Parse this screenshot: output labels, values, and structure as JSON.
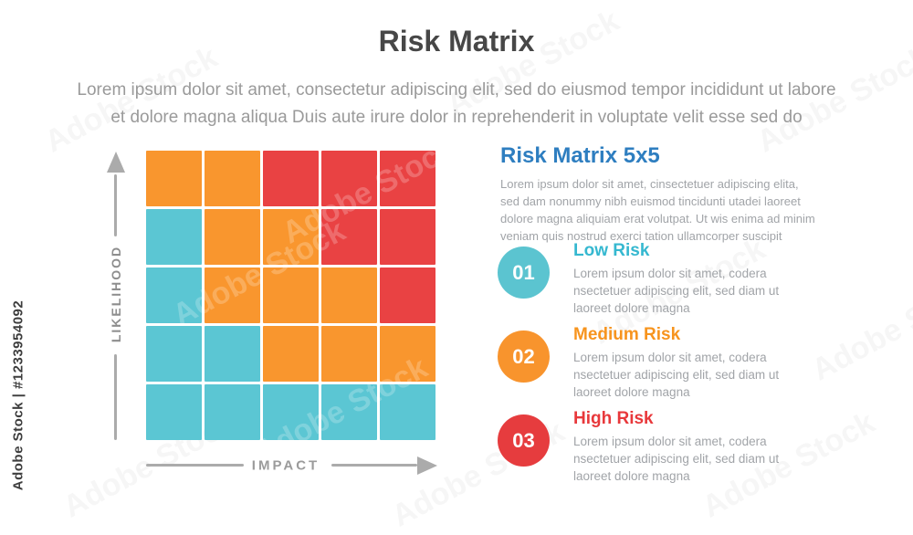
{
  "watermark": {
    "side_label": "Adobe Stock | #1233954092",
    "diagonal_label": "Adobe Stock"
  },
  "header": {
    "title": "Risk Matrix",
    "subtitle_line1": "Lorem ipsum dolor sit amet, consectetur adipiscing elit, sed do eiusmod tempor incididunt ut labore",
    "subtitle_line2": "et dolore magna aliqua Duis aute irure dolor in reprehenderit in voluptate velit esse sed do"
  },
  "matrix": {
    "y_axis_label": "LIKELIHOOD",
    "x_axis_label": "IMPACT",
    "rows": 5,
    "cols": 5,
    "cells": [
      [
        "orange",
        "orange",
        "red",
        "red",
        "red"
      ],
      [
        "teal",
        "orange",
        "orange",
        "red",
        "red"
      ],
      [
        "teal",
        "orange",
        "orange",
        "orange",
        "red"
      ],
      [
        "teal",
        "teal",
        "orange",
        "orange",
        "orange"
      ],
      [
        "teal",
        "teal",
        "teal",
        "teal",
        "teal"
      ]
    ],
    "colors": {
      "teal": "#5BC6D3",
      "orange": "#F9962E",
      "red": "#E94243"
    }
  },
  "panel": {
    "heading": "Risk Matrix 5x5",
    "heading_color": "#2E7EC0",
    "description": "Lorem ipsum dolor sit amet, cinsectetuer adipiscing elita, sed dam nonummy nibh euismod tincidunti utadei laoreet dolore magna aliquiam erat volutpat. Ut wis enima ad minim veniam quis nostrud exerci tation ullamcorper suscipit",
    "items": [
      {
        "number": "01",
        "title": "Low Risk",
        "title_color": "#35B8D0",
        "circle_color": "#5BC4D0",
        "body": "Lorem ipsum dolor sit amet, codera nsectetuer adipiscing elit, sed diam ut laoreet dolore magna"
      },
      {
        "number": "02",
        "title": "Medium Risk",
        "title_color": "#F7941E",
        "circle_color": "#F8942D",
        "body": "Lorem ipsum dolor sit amet, codera nsectetuer adipiscing elit, sed diam ut laoreet dolore magna"
      },
      {
        "number": "03",
        "title": "High Risk",
        "title_color": "#E8383B",
        "circle_color": "#E63C3E",
        "body": "Lorem ipsum dolor sit amet, codera nsectetuer adipiscing elit, sed diam ut laoreet dolore magna"
      }
    ]
  }
}
